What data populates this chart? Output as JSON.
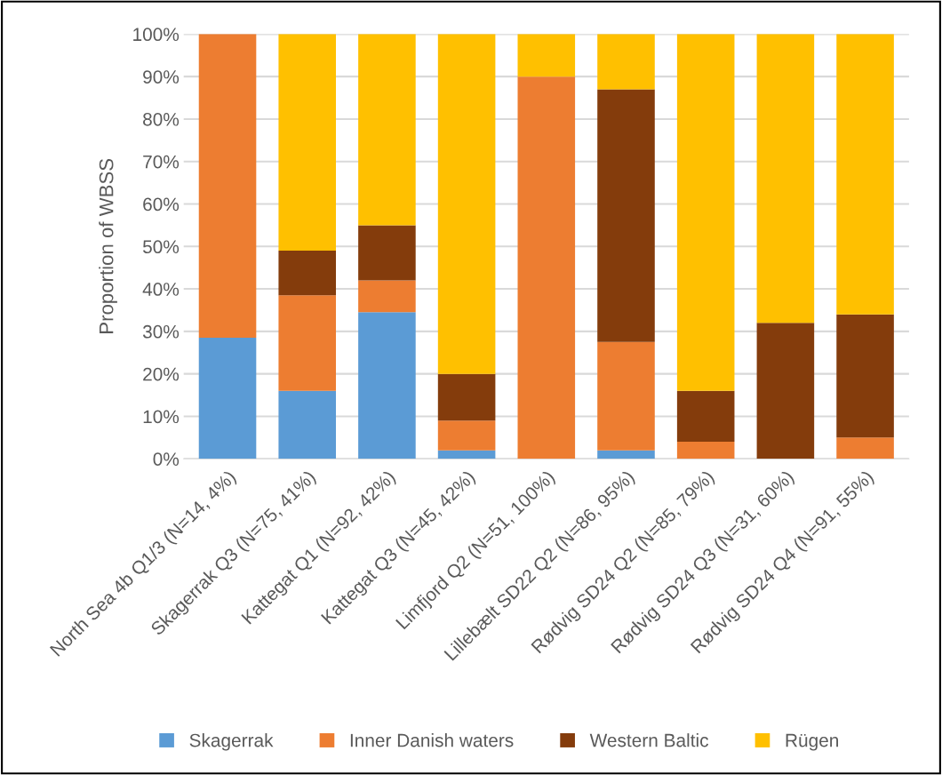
{
  "chart_data": {
    "type": "bar",
    "stacked": true,
    "ylabel": "Proportion of WBSS",
    "categories": [
      "North Sea 4b Q1/3 (N=14, 4%)",
      "Skagerrak Q3 (N=75, 41%)",
      "Kattegat Q1 (N=92, 42%)",
      "Kattegat Q3 (N=45, 42%)",
      "Limfjord Q2 (N=51, 100%)",
      "Lillebælt SD22 Q2 (N=86, 95%)",
      "Rødvig SD24 Q2 (N=85, 79%)",
      "Rødvig SD24 Q3 (N=31, 60%)",
      "Rødvig SD24 Q4 (N=91, 55%)"
    ],
    "series": [
      {
        "name": "Skagerrak",
        "color": "#5b9bd5",
        "values": [
          28.5,
          16,
          34.5,
          2,
          0,
          2,
          0,
          0,
          0
        ]
      },
      {
        "name": "Inner Danish waters",
        "color": "#ed7d31",
        "values": [
          71.5,
          22.5,
          7.5,
          7,
          90,
          25.5,
          4,
          0,
          5
        ]
      },
      {
        "name": "Western Baltic",
        "color": "#843c0c",
        "values": [
          0,
          10.5,
          13,
          11,
          0,
          59.5,
          12,
          32,
          29
        ]
      },
      {
        "name": "Rügen",
        "color": "#ffc000",
        "values": [
          0,
          51,
          45,
          80,
          10,
          13,
          84,
          68,
          66
        ]
      }
    ],
    "ylim": [
      0,
      100
    ],
    "yticks": [
      {
        "value": 0,
        "label": "0%"
      },
      {
        "value": 10,
        "label": "10%"
      },
      {
        "value": 20,
        "label": "20%"
      },
      {
        "value": 30,
        "label": "30%"
      },
      {
        "value": 40,
        "label": "40%"
      },
      {
        "value": 50,
        "label": "50%"
      },
      {
        "value": 60,
        "label": "60%"
      },
      {
        "value": 70,
        "label": "70%"
      },
      {
        "value": 80,
        "label": "80%"
      },
      {
        "value": 90,
        "label": "90%"
      },
      {
        "value": 100,
        "label": "100%"
      }
    ],
    "grid": "y",
    "legend": "bottom"
  }
}
